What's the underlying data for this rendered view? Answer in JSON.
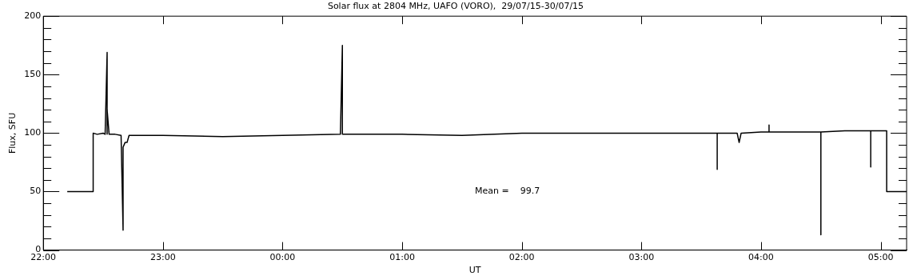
{
  "chart_data": {
    "type": "line",
    "title": "Solar flux at 2804 MHz, UAFO (VORO),  29/07/15-30/07/15",
    "xlabel": "UT",
    "ylabel": "Flux, SFU",
    "x": [
      "--07-29T22:12",
      "--07-29T22:25",
      "--07-29T22:25",
      "--07-29T22:27",
      "--07-29T22:30",
      "--07-29T22:31",
      "--07-29T22:32",
      "--07-29T22:32",
      "--07-29T22:32",
      "--07-29T22:33",
      "--07-29T22:36",
      "--07-29T22:39",
      "--07-29T22:40",
      "--07-29T22:40",
      "--07-29T22:41",
      "--07-29T22:42",
      "--07-29T22:43",
      "--07-29T23:00",
      "--07-29T23:30",
      "--07-30T00:00",
      "--07-30T00:29",
      "--07-30T00:30",
      "--07-30T00:30",
      "--07-30T01:00",
      "--07-30T01:30",
      "--07-30T02:00",
      "--07-30T02:30",
      "--07-30T03:00",
      "--07-30T03:30",
      "--07-30T03:38",
      "--07-30T03:38",
      "--07-30T03:38",
      "--07-30T03:48",
      "--07-30T03:49",
      "--07-30T03:50",
      "--07-30T04:00",
      "--07-30T04:04",
      "--07-30T04:04",
      "--07-30T04:04",
      "--07-30T04:18",
      "--07-30T04:30",
      "--07-30T04:30",
      "--07-30T04:30",
      "--07-30T04:42",
      "--07-30T04:55",
      "--07-30T04:55",
      "--07-30T04:55",
      "--07-30T05:03",
      "--07-30T05:03",
      "--07-30T05:13"
    ],
    "series": [
      {
        "color": "#000000",
        "values": [
          50,
          50,
          100,
          99,
          100,
          99,
          169,
          99,
          120,
          99,
          99,
          98,
          17,
          88,
          92,
          92,
          98,
          98,
          97,
          98,
          99,
          175,
          99,
          99,
          98,
          100,
          100,
          100,
          100,
          100,
          69,
          100,
          100,
          92,
          100,
          101,
          101,
          107,
          101,
          101,
          101,
          13,
          101,
          102,
          102,
          71,
          102,
          102,
          50,
          50
        ]
      }
    ],
    "xlim": [
      "--07-29T22:00",
      "--07-30T05:13"
    ],
    "xticks": [
      {
        "value": "--07-29T22:00",
        "label": "22:00"
      },
      {
        "value": "--07-29T23:00",
        "label": "23:00"
      },
      {
        "value": "--07-30T00:00",
        "label": "00:00"
      },
      {
        "value": "--07-30T01:00",
        "label": "01:00"
      },
      {
        "value": "--07-30T02:00",
        "label": "02:00"
      },
      {
        "value": "--07-30T03:00",
        "label": "03:00"
      },
      {
        "value": "--07-30T04:00",
        "label": "04:00"
      },
      {
        "value": "--07-30T05:00",
        "label": "05:00"
      }
    ],
    "ylim": [
      0,
      200
    ],
    "yticks": [
      0,
      {
        "value": 10,
        "label": null
      },
      {
        "value": 20,
        "label": null
      },
      {
        "value": 30,
        "label": null
      },
      {
        "value": 40,
        "label": null
      },
      50,
      {
        "value": 60,
        "label": null
      },
      {
        "value": 70,
        "label": null
      },
      {
        "value": 80,
        "label": null
      },
      {
        "value": 90,
        "label": null
      },
      100,
      {
        "value": 110,
        "label": null
      },
      {
        "value": 120,
        "label": null
      },
      {
        "value": 130,
        "label": null
      },
      {
        "value": 140,
        "label": null
      },
      150,
      {
        "value": 160,
        "label": null
      },
      {
        "value": 170,
        "label": null
      },
      {
        "value": 180,
        "label": null
      },
      {
        "value": 190,
        "label": null
      },
      200
    ],
    "annotations": [
      "Mean =    99.7"
    ],
    "grid": false,
    "legend": false,
    "marker": "none",
    "line_style": "solid"
  }
}
